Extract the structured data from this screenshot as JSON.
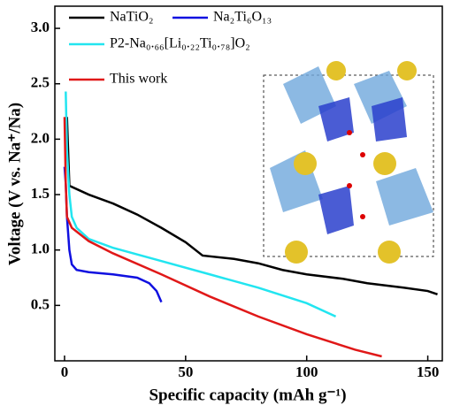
{
  "chart_data": {
    "type": "line",
    "x_label": "Specific capacity (mAh g⁻¹)",
    "y_label": "Voltage (V vs. Na⁺/Na)",
    "xlim": [
      -4,
      156
    ],
    "ylim": [
      0,
      3.2
    ],
    "xticks": [
      0,
      50,
      100,
      150
    ],
    "yticks": [
      0.5,
      1.0,
      1.5,
      2.0,
      2.5,
      3.0
    ],
    "series": [
      {
        "name": "NaTiO₂",
        "color": "#000000",
        "x": [
          1,
          2,
          10,
          20,
          30,
          40,
          50,
          57,
          70,
          80,
          90,
          100,
          115,
          125,
          140,
          150,
          154
        ],
        "values": [
          2.2,
          1.58,
          1.5,
          1.42,
          1.32,
          1.2,
          1.07,
          0.95,
          0.92,
          0.88,
          0.82,
          0.78,
          0.74,
          0.7,
          0.66,
          0.63,
          0.6
        ]
      },
      {
        "name": "Na₂Ti₆O₁₃",
        "color": "#1010e0",
        "x": [
          0,
          0.5,
          1,
          2,
          3,
          5,
          10,
          20,
          30,
          35,
          38,
          40
        ],
        "values": [
          1.75,
          1.6,
          1.3,
          1.0,
          0.87,
          0.82,
          0.8,
          0.78,
          0.75,
          0.7,
          0.63,
          0.53
        ]
      },
      {
        "name": "P2-Na₀.₆₆[Li₀.₂₂Ti₀.₇₈]O₂",
        "color": "#22e5f0",
        "x": [
          0.5,
          1,
          2,
          3,
          5,
          10,
          20,
          40,
          60,
          80,
          100,
          112
        ],
        "values": [
          2.43,
          1.9,
          1.5,
          1.3,
          1.2,
          1.1,
          1.02,
          0.9,
          0.78,
          0.66,
          0.52,
          0.4
        ]
      },
      {
        "name": "This work",
        "color": "#e01818",
        "x": [
          0,
          0.5,
          1,
          3,
          10,
          20,
          40,
          60,
          80,
          100,
          120,
          131
        ],
        "values": [
          2.2,
          1.6,
          1.3,
          1.2,
          1.08,
          0.97,
          0.78,
          0.58,
          0.4,
          0.24,
          0.1,
          0.04
        ]
      }
    ]
  }
}
